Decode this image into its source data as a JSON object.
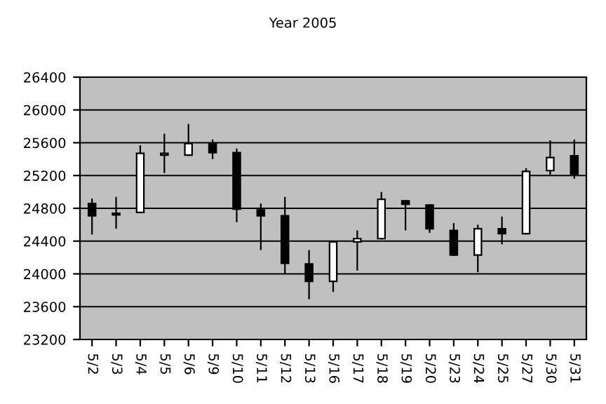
{
  "chart_data": {
    "type": "candlestick",
    "title": "Year 2005",
    "categories": [
      "5/2",
      "5/3",
      "5/4",
      "5/5",
      "5/6",
      "5/9",
      "5/10",
      "5/11",
      "5/12",
      "5/13",
      "5/16",
      "5/17",
      "5/18",
      "5/19",
      "5/20",
      "5/23",
      "5/24",
      "5/25",
      "5/27",
      "5/30",
      "5/31"
    ],
    "ohlc": [
      [
        24860,
        24910,
        24490,
        24710
      ],
      [
        24740,
        24930,
        24560,
        24720
      ],
      [
        24750,
        25560,
        24750,
        25470
      ],
      [
        25450,
        25700,
        25240,
        25470
      ],
      [
        25450,
        25820,
        25450,
        25590
      ],
      [
        25590,
        25630,
        25410,
        25480
      ],
      [
        25480,
        25520,
        24640,
        24790
      ],
      [
        24780,
        24850,
        24300,
        24710
      ],
      [
        24710,
        24930,
        24010,
        24130
      ],
      [
        24120,
        24280,
        23700,
        23910
      ],
      [
        23910,
        24390,
        23790,
        24390
      ],
      [
        24390,
        24520,
        24050,
        24430
      ],
      [
        24430,
        24990,
        24430,
        24910
      ],
      [
        24890,
        24890,
        24540,
        24850
      ],
      [
        24840,
        24840,
        24510,
        24550
      ],
      [
        24530,
        24610,
        24230,
        24230
      ],
      [
        24230,
        24590,
        24030,
        24550
      ],
      [
        24550,
        24690,
        24370,
        24490
      ],
      [
        24490,
        25280,
        24490,
        25250
      ],
      [
        25260,
        25620,
        25220,
        25420
      ],
      [
        25440,
        25630,
        25170,
        25220
      ]
    ],
    "ylim": [
      23200,
      26400
    ],
    "yticks": [
      23200,
      23600,
      24000,
      24400,
      24800,
      25200,
      25600,
      26000,
      26400
    ],
    "grid": "y"
  }
}
